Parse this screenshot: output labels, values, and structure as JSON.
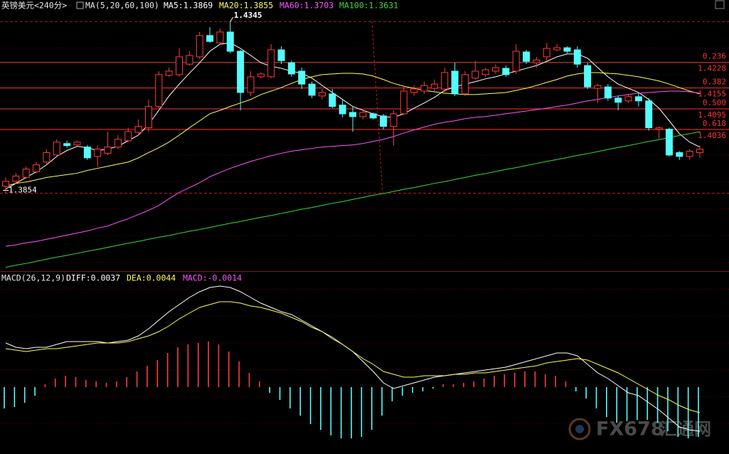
{
  "chart_data": [
    {
      "type": "candlestick",
      "title": "英镑美元<240分>",
      "indicator": "MA(5,20,60,100)",
      "ylim": [
        1.3631,
        1.4376
      ],
      "up_color": "#ff3b3b",
      "down_color": "#54fcfc",
      "candles": {
        "open": [
          1.3874,
          1.3888,
          1.3899,
          1.3915,
          1.3943,
          1.3963,
          1.3996,
          1.3992,
          1.3986,
          1.3959,
          1.3968,
          1.3986,
          1.4004,
          1.4028,
          1.4041,
          1.4102,
          1.4191,
          1.4193,
          1.4223,
          1.4244,
          1.4305,
          1.4284,
          1.4315,
          1.426,
          1.4142,
          1.4187,
          1.4187,
          1.4264,
          1.4227,
          1.4203,
          1.4166,
          1.4132,
          1.4138,
          1.4106,
          1.4085,
          1.4073,
          1.4081,
          1.4075,
          1.4045,
          1.4081,
          1.4142,
          1.4146,
          1.4154,
          1.4152,
          1.4203,
          1.4138,
          1.4183,
          1.4193,
          1.4203,
          1.4211,
          1.4203,
          1.4258,
          1.4227,
          1.4244,
          1.4264,
          1.427,
          1.4264,
          1.4219,
          1.4154,
          1.4158,
          1.4126,
          1.4118,
          1.413,
          1.4118,
          1.4037,
          1.4037,
          1.397,
          1.3959,
          1.397
        ],
        "high": [
          1.3899,
          1.3911,
          1.3931,
          1.3943,
          1.398,
          1.4008,
          1.4004,
          1.4004,
          1.3992,
          1.399,
          1.403,
          1.402,
          1.4041,
          1.4065,
          1.4122,
          1.4203,
          1.4213,
          1.4268,
          1.426,
          1.4315,
          1.4329,
          1.4325,
          1.4345,
          1.4264,
          1.4203,
          1.4199,
          1.428,
          1.4274,
          1.4233,
          1.4213,
          1.4173,
          1.4152,
          1.4152,
          1.4122,
          1.4102,
          1.4091,
          1.4085,
          1.4081,
          1.4091,
          1.4158,
          1.4162,
          1.4173,
          1.4179,
          1.4213,
          1.4227,
          1.4203,
          1.4233,
          1.4213,
          1.4223,
          1.4219,
          1.428,
          1.4264,
          1.4244,
          1.4284,
          1.428,
          1.4274,
          1.4274,
          1.4227,
          1.4166,
          1.4166,
          1.4132,
          1.4138,
          1.4142,
          1.4126,
          1.4045,
          1.4041,
          1.3974,
          1.398,
          1.399
        ],
        "low": [
          1.3854,
          1.3882,
          1.3895,
          1.3911,
          1.3935,
          1.3959,
          1.3984,
          1.399,
          1.3949,
          1.3929,
          1.3963,
          1.398,
          1.4,
          1.402,
          1.403,
          1.4097,
          1.4187,
          1.4187,
          1.4219,
          1.4238,
          1.4284,
          1.428,
          1.4254,
          1.4091,
          1.4132,
          1.4183,
          1.4183,
          1.4223,
          1.4187,
          1.4152,
          1.4126,
          1.4122,
          1.4097,
          1.4071,
          1.403,
          1.4065,
          1.4065,
          1.4037,
          1.399,
          1.4077,
          1.4132,
          1.4138,
          1.4146,
          1.4142,
          1.4132,
          1.4132,
          1.4179,
          1.4187,
          1.4195,
          1.4187,
          1.4195,
          1.4223,
          1.4213,
          1.4233,
          1.426,
          1.4254,
          1.4213,
          1.4152,
          1.4112,
          1.4118,
          1.4091,
          1.4112,
          1.4102,
          1.4033,
          1.401,
          1.3959,
          1.3949,
          1.3949,
          1.3955
        ],
        "close": [
          1.3888,
          1.3903,
          1.3923,
          1.3935,
          1.397,
          1.4,
          1.399,
          1.4,
          1.3955,
          1.398,
          1.3986,
          1.4008,
          1.403,
          1.4045,
          1.4102,
          1.4193,
          1.4203,
          1.4244,
          1.4248,
          1.4305,
          1.4288,
          1.4315,
          1.426,
          1.4142,
          1.4187,
          1.4195,
          1.4264,
          1.4233,
          1.4195,
          1.4166,
          1.4134,
          1.4142,
          1.4102,
          1.4081,
          1.4073,
          1.4085,
          1.4069,
          1.4045,
          1.4081,
          1.4146,
          1.4152,
          1.4162,
          1.4166,
          1.4199,
          1.4138,
          1.4193,
          1.4203,
          1.4207,
          1.4213,
          1.4193,
          1.426,
          1.4231,
          1.4235,
          1.4268,
          1.427,
          1.426,
          1.4223,
          1.4158,
          1.4162,
          1.4126,
          1.4114,
          1.413,
          1.4118,
          1.4041,
          1.4041,
          1.3963,
          1.3959,
          1.3974,
          1.398
        ]
      },
      "series": [
        {
          "name": "MA5:1.3869",
          "color": "#ffffff",
          "values": [
            1.3866,
            1.3882,
            1.3899,
            1.3915,
            1.3935,
            1.3959,
            1.3976,
            1.3988,
            1.3984,
            1.3976,
            1.398,
            1.3988,
            1.4004,
            1.402,
            1.4051,
            1.4091,
            1.4132,
            1.4166,
            1.4197,
            1.4227,
            1.426,
            1.428,
            1.4284,
            1.4268,
            1.4248,
            1.4227,
            1.4217,
            1.4211,
            1.4203,
            1.4197,
            1.4183,
            1.4162,
            1.4142,
            1.4122,
            1.4102,
            1.4091,
            1.4081,
            1.4073,
            1.4071,
            1.4081,
            1.4097,
            1.4112,
            1.4128,
            1.4148,
            1.4158,
            1.4166,
            1.4173,
            1.4181,
            1.4187,
            1.4195,
            1.4203,
            1.4211,
            1.4219,
            1.4231,
            1.4244,
            1.4252,
            1.4252,
            1.424,
            1.4213,
            1.4187,
            1.4166,
            1.4154,
            1.4142,
            1.4122,
            1.4097,
            1.4061,
            1.4024,
            1.4,
            1.3986
          ]
        },
        {
          "name": "MA20:1.3855",
          "color": "#ffff54",
          "values": [
            1.3874,
            1.3882,
            1.3886,
            1.3892,
            1.3899,
            1.3903,
            1.3907,
            1.3911,
            1.3919,
            1.3925,
            1.3931,
            1.3937,
            1.3943,
            1.3955,
            1.397,
            1.3984,
            1.4,
            1.402,
            1.4041,
            1.4061,
            1.4081,
            1.4091,
            1.4102,
            1.4112,
            1.4122,
            1.4136,
            1.4146,
            1.4156,
            1.4168,
            1.4179,
            1.4187,
            1.4193,
            1.4195,
            1.4197,
            1.4197,
            1.4195,
            1.4189,
            1.4179,
            1.4168,
            1.416,
            1.4154,
            1.4148,
            1.4144,
            1.414,
            1.4138,
            1.4136,
            1.4136,
            1.4138,
            1.414,
            1.4142,
            1.4148,
            1.4154,
            1.4162,
            1.4171,
            1.4179,
            1.4189,
            1.4195,
            1.4199,
            1.4199,
            1.4197,
            1.4195,
            1.4191,
            1.4187,
            1.4181,
            1.4175,
            1.4166,
            1.4156,
            1.4146,
            1.4138
          ]
        },
        {
          "name": "MA60:1.3703",
          "color": "#ff54ff",
          "values": [
            1.3702,
            1.3706,
            1.3712,
            1.3716,
            1.3722,
            1.3728,
            1.3734,
            1.374,
            1.3746,
            1.3754,
            1.376,
            1.3771,
            1.3781,
            1.3793,
            1.3805,
            1.3819,
            1.3838,
            1.3856,
            1.387,
            1.3884,
            1.3901,
            1.3913,
            1.3925,
            1.3935,
            1.3945,
            1.3953,
            1.3961,
            1.3968,
            1.3974,
            1.3978,
            1.3982,
            1.3986,
            1.3988,
            1.399,
            1.3992,
            1.3996,
            1.4002,
            1.4008,
            1.4016,
            1.4026,
            1.4035,
            1.4043,
            1.4051,
            1.4057,
            1.4061,
            1.4067,
            1.4071,
            1.4073,
            1.4077,
            1.4081,
            1.4085,
            1.4089,
            1.4093,
            1.4097,
            1.4102,
            1.4106,
            1.4112,
            1.4118,
            1.4122,
            1.4128,
            1.4132,
            1.4136,
            1.414,
            1.4142,
            1.4144,
            1.4146,
            1.4146,
            1.4144,
            1.414
          ]
        },
        {
          "name": "MA100:1.3631",
          "color": "#33dd33",
          "values": [
            1.3642,
            1.3648,
            1.3653,
            1.3659,
            1.3665,
            1.3671,
            1.3676,
            1.3682,
            1.3688,
            1.3693,
            1.3699,
            1.3705,
            1.3711,
            1.3716,
            1.3722,
            1.3728,
            1.3733,
            1.3739,
            1.3745,
            1.375,
            1.3756,
            1.3762,
            1.3768,
            1.3773,
            1.3779,
            1.3785,
            1.379,
            1.3796,
            1.3802,
            1.3808,
            1.3813,
            1.3819,
            1.3825,
            1.383,
            1.3836,
            1.3842,
            1.3848,
            1.3853,
            1.3859,
            1.3865,
            1.387,
            1.3876,
            1.3882,
            1.3887,
            1.3893,
            1.3899,
            1.3905,
            1.391,
            1.3916,
            1.3922,
            1.3927,
            1.3933,
            1.3939,
            1.3945,
            1.395,
            1.3956,
            1.3962,
            1.3967,
            1.3973,
            1.3979,
            1.3985,
            1.399,
            1.3996,
            1.4002,
            1.4007,
            1.4013,
            1.4019,
            1.4024,
            1.403
          ]
        }
      ],
      "fib_levels": [
        {
          "ratio": "0.236",
          "price": 1.4228
        },
        {
          "ratio": "0.382",
          "price": 1.4155
        },
        {
          "ratio": "0.500",
          "price": 1.4095
        },
        {
          "ratio": "0.618",
          "price": 1.4036
        }
      ],
      "fib_color": "#ff3333"
    },
    {
      "type": "macd",
      "title": "MACD(26,12,9)",
      "ylim": [
        -0.0044,
        0.0073
      ],
      "series": [
        {
          "name": "DIFF:0.0037",
          "kind": "line",
          "color": "#ffffff",
          "values": [
            0.0031,
            0.0028,
            0.0027,
            0.0028,
            0.0028,
            0.003,
            0.0032,
            0.0032,
            0.0032,
            0.0032,
            0.0031,
            0.0032,
            0.0033,
            0.0036,
            0.0041,
            0.0047,
            0.0053,
            0.0058,
            0.0063,
            0.0067,
            0.007,
            0.0071,
            0.007,
            0.0067,
            0.0063,
            0.0059,
            0.0056,
            0.0053,
            0.0051,
            0.0047,
            0.0043,
            0.0039,
            0.0035,
            0.003,
            0.0025,
            0.0018,
            0.0011,
            0.0003,
            -0.0001,
            0.0001,
            0.0003,
            0.0005,
            0.0007,
            0.0008,
            0.0009,
            0.001,
            0.0011,
            0.0012,
            0.0013,
            0.0014,
            0.0016,
            0.0018,
            0.002,
            0.0022,
            0.0024,
            0.0024,
            0.0022,
            0.0016,
            0.001,
            0.0006,
            0.0001,
            -0.0004,
            -0.0006,
            -0.0011,
            -0.0016,
            -0.0022,
            -0.0028,
            -0.003,
            -0.0031
          ]
        },
        {
          "name": "DEA:0.0044",
          "kind": "line",
          "color": "#ffff54",
          "values": [
            0.0027,
            0.0026,
            0.0025,
            0.0026,
            0.0027,
            0.0027,
            0.0028,
            0.0029,
            0.003,
            0.0031,
            0.0031,
            0.0031,
            0.0032,
            0.0034,
            0.0036,
            0.0039,
            0.0043,
            0.0048,
            0.0052,
            0.0056,
            0.0058,
            0.006,
            0.006,
            0.0059,
            0.0057,
            0.0056,
            0.0054,
            0.0052,
            0.0049,
            0.0046,
            0.0042,
            0.0039,
            0.0034,
            0.003,
            0.0025,
            0.002,
            0.0016,
            0.0011,
            0.0009,
            0.0007,
            0.0007,
            0.0008,
            0.0008,
            0.0008,
            0.0009,
            0.0009,
            0.001,
            0.001,
            0.0011,
            0.0012,
            0.0013,
            0.0014,
            0.0015,
            0.0017,
            0.0018,
            0.0019,
            0.002,
            0.0019,
            0.0016,
            0.0013,
            0.001,
            0.0006,
            0.0002,
            -0.0002,
            -0.0006,
            -0.0009,
            -0.0013,
            -0.0016,
            -0.0018
          ]
        },
        {
          "name": "MACD:-0.0014",
          "kind": "bar",
          "color": "#ff54ff",
          "up_color": "#ff3b3b",
          "down_color": "#54fcfc",
          "values": [
            -0.0015,
            -0.0014,
            -0.0011,
            -0.0006,
            0.0002,
            0.0006,
            0.0008,
            0.0007,
            0.0005,
            0.0004,
            0.0003,
            0.0004,
            0.0007,
            0.0011,
            0.0015,
            0.0019,
            0.0024,
            0.0028,
            0.003,
            0.0031,
            0.0032,
            0.003,
            0.0025,
            0.0018,
            0.001,
            0.0004,
            -0.0004,
            -0.0009,
            -0.0015,
            -0.002,
            -0.0026,
            -0.003,
            -0.0034,
            -0.0036,
            -0.0036,
            -0.0035,
            -0.003,
            -0.002,
            -0.001,
            -0.0006,
            -0.0004,
            -0.0003,
            -0.0001,
            0.0002,
            0.0002,
            0.0003,
            0.0004,
            0.0006,
            0.0008,
            0.0009,
            0.001,
            0.0011,
            0.0011,
            0.0009,
            0.0008,
            0.0004,
            -0.0003,
            -0.0008,
            -0.0015,
            -0.0021,
            -0.0025,
            -0.0024,
            -0.0023,
            -0.0023,
            -0.0025,
            -0.0031,
            -0.0035,
            -0.0036,
            -0.0035
          ]
        }
      ]
    }
  ],
  "watermark": {
    "brand": "FX678",
    "name": "汇通网"
  }
}
